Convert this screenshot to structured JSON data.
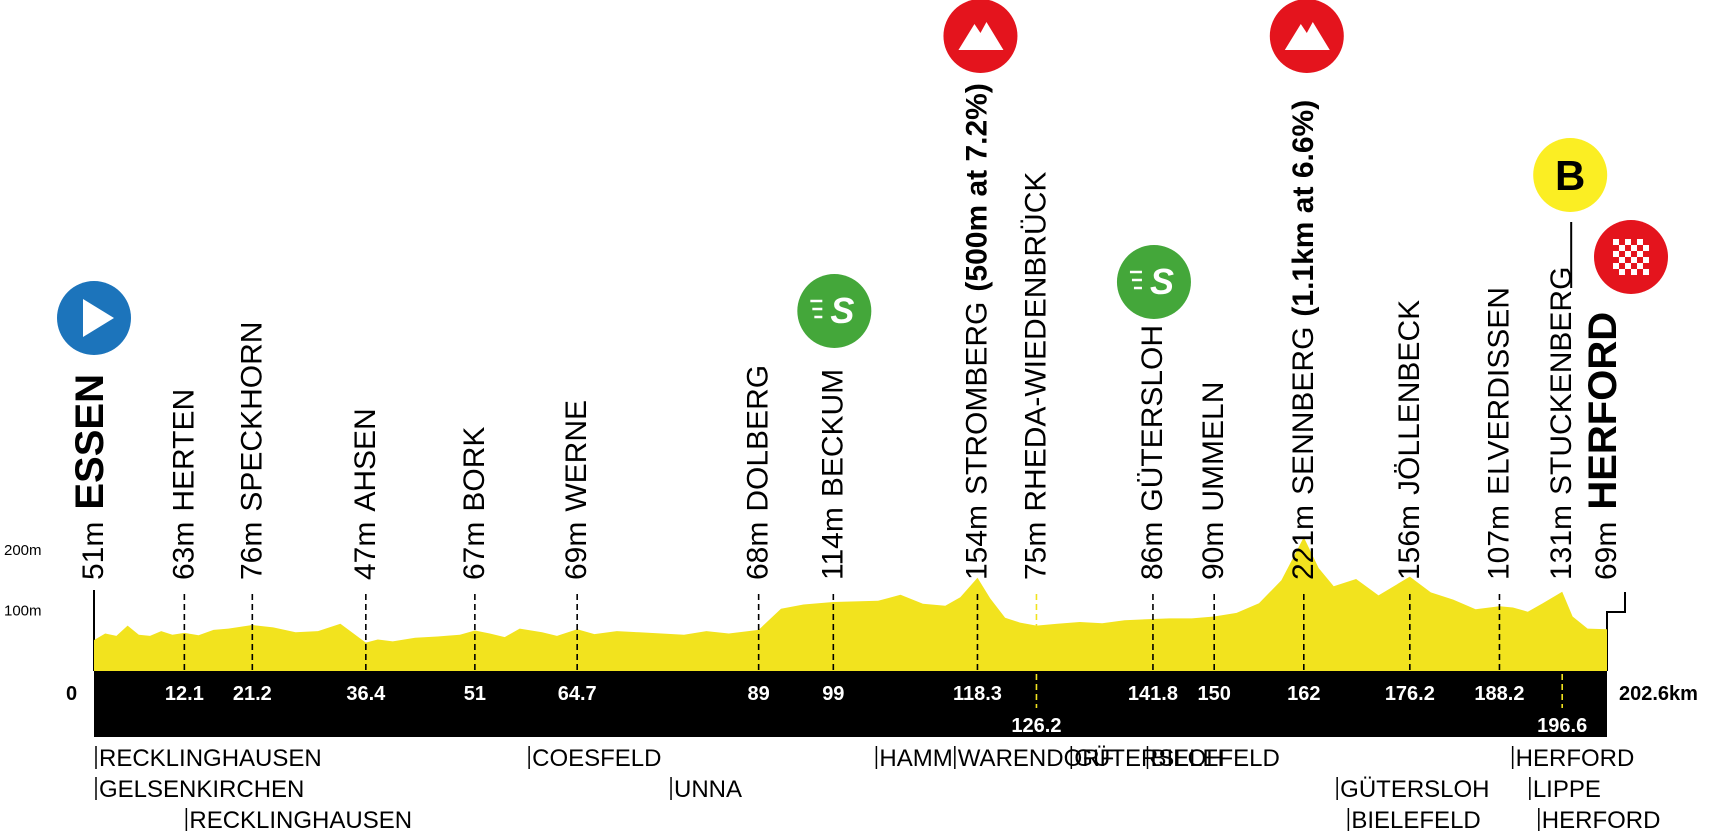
{
  "chart_data": {
    "type": "area",
    "title": "",
    "xlabel": "",
    "ylabel": "",
    "distance_unit": "km",
    "total_distance": 202.6,
    "start_label": "0",
    "end_label": "202.6km",
    "y_ticks": [
      {
        "value": 200,
        "label": "200m"
      },
      {
        "value": 100,
        "label": "100m"
      }
    ],
    "ylim": [
      0,
      250
    ],
    "colors": {
      "profile": "#f2e31e",
      "base": "#000000",
      "start": "#1c74bb",
      "climb": "#e4141d",
      "sprint": "#44a73a",
      "bonus": "#fbee23"
    },
    "profile": {
      "x": [
        0,
        1.5,
        3,
        4.5,
        6,
        7.5,
        9,
        10.5,
        12.1,
        14,
        16,
        18,
        21.2,
        24,
        27,
        30,
        33,
        36.4,
        38,
        40,
        43,
        46,
        49,
        51,
        53,
        55,
        57,
        60,
        62,
        64.7,
        67,
        70,
        73,
        76,
        79,
        82,
        85,
        89,
        92,
        95,
        99,
        102,
        105,
        108,
        111,
        114,
        116,
        118.3,
        120,
        122,
        124,
        126.2,
        129,
        132,
        135,
        138,
        141.8,
        144,
        147,
        150,
        153,
        156,
        159,
        162,
        164,
        166,
        169,
        172,
        176.2,
        179,
        182,
        185,
        188.2,
        190,
        192,
        194,
        196.6,
        198,
        200,
        202.6
      ],
      "y": [
        51,
        62,
        58,
        75,
        60,
        58,
        66,
        60,
        63,
        59,
        68,
        70,
        76,
        72,
        64,
        66,
        78,
        47,
        52,
        49,
        55,
        57,
        60,
        67,
        62,
        56,
        70,
        64,
        58,
        69,
        61,
        66,
        64,
        62,
        60,
        66,
        62,
        68,
        103,
        110,
        114,
        115,
        116,
        126,
        111,
        108,
        122,
        154,
        120,
        88,
        80,
        75,
        78,
        81,
        79,
        84,
        86,
        87,
        87,
        90,
        96,
        112,
        150,
        221,
        170,
        140,
        152,
        125,
        156,
        130,
        118,
        102,
        107,
        105,
        98,
        112,
        131,
        90,
        70,
        69
      ]
    },
    "points": [
      {
        "km": 0,
        "km_label": "",
        "alt": 51,
        "alt_label": "51m",
        "place": "ESSEN",
        "major": true
      },
      {
        "km": 12.1,
        "km_label": "12.1",
        "alt": 63,
        "alt_label": "63m",
        "place": "HERTEN"
      },
      {
        "km": 21.2,
        "km_label": "21.2",
        "alt": 76,
        "alt_label": "76m",
        "place": "SPECKHORN"
      },
      {
        "km": 36.4,
        "km_label": "36.4",
        "alt": 47,
        "alt_label": "47m",
        "place": "AHSEN"
      },
      {
        "km": 51,
        "km_label": "51",
        "alt": 67,
        "alt_label": "67m",
        "place": "BORK"
      },
      {
        "km": 64.7,
        "km_label": "64.7",
        "alt": 69,
        "alt_label": "69m",
        "place": "WERNE"
      },
      {
        "km": 89,
        "km_label": "89",
        "alt": 68,
        "alt_label": "68m",
        "place": "DOLBERG"
      },
      {
        "km": 99,
        "km_label": "99",
        "alt": 114,
        "alt_label": "114m",
        "place": "BECKUM"
      },
      {
        "km": 118.3,
        "km_label": "118.3",
        "alt": 154,
        "alt_label": "154m",
        "place": "STROMBERG",
        "note": "(500m at 7.2%)"
      },
      {
        "km": 126.2,
        "km_label": "126.2",
        "alt": 75,
        "alt_label": "75m",
        "place": "RHEDA-WIEDENBRÜCK",
        "low": true
      },
      {
        "km": 141.8,
        "km_label": "141.8",
        "alt": 86,
        "alt_label": "86m",
        "place": "GÜTERSLOH"
      },
      {
        "km": 150,
        "km_label": "150",
        "alt": 90,
        "alt_label": "90m",
        "place": "UMMELN"
      },
      {
        "km": 162,
        "km_label": "162",
        "alt": 221,
        "alt_label": "221m",
        "place": "SENNBERG",
        "note": "(1.1km at 6.6%)"
      },
      {
        "km": 176.2,
        "km_label": "176.2",
        "alt": 156,
        "alt_label": "156m",
        "place": "JÖLLENBECK"
      },
      {
        "km": 188.2,
        "km_label": "188.2",
        "alt": 107,
        "alt_label": "107m",
        "place": "ELVERDISSEN"
      },
      {
        "km": 196.6,
        "km_label": "196.6",
        "alt": 131,
        "alt_label": "131m",
        "place": "STUCKENBERG",
        "low": true
      },
      {
        "km": 202.6,
        "km_label": "",
        "alt": 69,
        "alt_label": "69m",
        "place": "HERFORD",
        "major": true
      }
    ],
    "markers": [
      {
        "type": "start",
        "km": 0
      },
      {
        "type": "sprint",
        "km": 99,
        "label": "S"
      },
      {
        "type": "climb",
        "km": 118.3
      },
      {
        "type": "sprint",
        "km": 141.8,
        "label": "S"
      },
      {
        "type": "climb",
        "km": 162
      },
      {
        "type": "bonus",
        "km": 196.6,
        "label": "B"
      },
      {
        "type": "finish",
        "km": 202.6
      }
    ],
    "districts": [
      {
        "km": 0,
        "row": 0,
        "label": "RECKLINGHAUSEN"
      },
      {
        "km": 0,
        "row": 1,
        "label": "GELSENKIRCHEN"
      },
      {
        "km": 12.1,
        "row": 2,
        "label": "RECKLINGHAUSEN"
      },
      {
        "km": 58,
        "row": 0,
        "label": "COESFELD"
      },
      {
        "km": 77,
        "row": 1,
        "label": "UNNA"
      },
      {
        "km": 104.5,
        "row": 0,
        "label": "HAMM"
      },
      {
        "km": 115,
        "row": 0,
        "label": "WARENDORF"
      },
      {
        "km": 130.6,
        "row": 0,
        "label": "GÜTERSLOH"
      },
      {
        "km": 140.8,
        "row": 0,
        "label": "BIELEFELD"
      },
      {
        "km": 166.2,
        "row": 1,
        "label": "GÜTERSLOH"
      },
      {
        "km": 167.7,
        "row": 2,
        "label": "BIELEFELD"
      },
      {
        "km": 189.7,
        "row": 0,
        "label": "HERFORD"
      },
      {
        "km": 192.0,
        "row": 1,
        "label": "LIPPE"
      },
      {
        "km": 193.2,
        "row": 2,
        "label": "HERFORD"
      }
    ]
  }
}
